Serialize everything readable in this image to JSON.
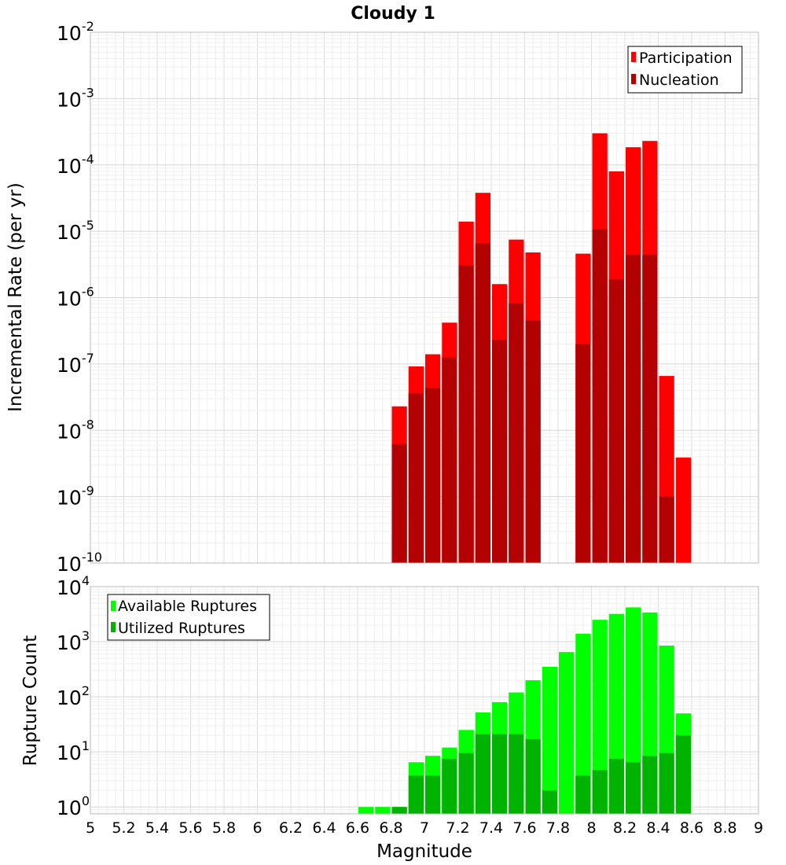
{
  "chart_data": [
    {
      "type": "bar",
      "title": "Cloudy 1",
      "xlabel": "Magnitude",
      "ylabel": "Incremental Rate (per yr)",
      "yscale": "log",
      "ylim": [
        1e-10,
        0.01
      ],
      "xlim": [
        5,
        9
      ],
      "bar_width": 0.1,
      "grid": true,
      "legend_position": "top-right",
      "series": [
        {
          "name": "Participation",
          "color": "#ff0000",
          "x": [
            6.85,
            6.95,
            7.05,
            7.15,
            7.25,
            7.35,
            7.45,
            7.55,
            7.65,
            7.95,
            8.05,
            8.15,
            8.25,
            8.35,
            8.45,
            8.55
          ],
          "values": [
            2.3e-08,
            9.2e-08,
            1.4e-07,
            4.2e-07,
            1.4e-05,
            3.8e-05,
            1.6e-06,
            7.5e-06,
            4.8e-06,
            4.6e-06,
            0.0003,
            8e-05,
            0.000185,
            0.00023,
            6.6e-08,
            3.9e-09
          ]
        },
        {
          "name": "Nucleation",
          "color": "#b30000",
          "x": [
            6.85,
            6.95,
            7.05,
            7.15,
            7.25,
            7.35,
            7.45,
            7.55,
            7.65,
            7.95,
            8.05,
            8.15,
            8.25,
            8.35,
            8.45
          ],
          "values": [
            6.2e-09,
            3.6e-08,
            4.4e-08,
            1.25e-07,
            3.1e-06,
            6.6e-06,
            2.3e-07,
            8.2e-07,
            4.5e-07,
            2e-07,
            1.08e-05,
            1.9e-06,
            4.4e-06,
            4.4e-06,
            1e-09
          ]
        }
      ],
      "y_ticks": [
        {
          "base": "10",
          "exp": "-2"
        },
        {
          "base": "10",
          "exp": "-3"
        },
        {
          "base": "10",
          "exp": "-4"
        },
        {
          "base": "10",
          "exp": "-5"
        },
        {
          "base": "10",
          "exp": "-6"
        },
        {
          "base": "10",
          "exp": "-7"
        },
        {
          "base": "10",
          "exp": "-8"
        },
        {
          "base": "10",
          "exp": "-9"
        },
        {
          "base": "10",
          "exp": "-10"
        }
      ]
    },
    {
      "type": "bar",
      "xlabel": "Magnitude",
      "ylabel": "Rupture Count",
      "yscale": "log",
      "ylim": [
        0.75,
        10000
      ],
      "xlim": [
        5,
        9
      ],
      "bar_width": 0.1,
      "grid": true,
      "legend_position": "top-left",
      "series": [
        {
          "name": "Available Ruptures",
          "color": "#00ff00",
          "x": [
            6.65,
            6.75,
            6.85,
            6.95,
            7.05,
            7.15,
            7.25,
            7.35,
            7.45,
            7.55,
            7.65,
            7.75,
            7.85,
            7.95,
            8.05,
            8.15,
            8.25,
            8.35,
            8.45,
            8.55
          ],
          "values": [
            1,
            1,
            1,
            6.5,
            8.5,
            12,
            25,
            52,
            80,
            120,
            200,
            350,
            650,
            1400,
            2500,
            3200,
            4200,
            3400,
            850,
            50
          ]
        },
        {
          "name": "Utilized Ruptures",
          "color": "#00b300",
          "x": [
            6.85,
            6.95,
            7.05,
            7.15,
            7.25,
            7.35,
            7.45,
            7.55,
            7.65,
            7.75,
            7.95,
            8.05,
            8.15,
            8.25,
            8.35,
            8.45,
            8.55
          ],
          "values": [
            1,
            3.7,
            3.7,
            7.5,
            9.5,
            21,
            21,
            21,
            17,
            2,
            3.7,
            4.7,
            7.5,
            6.5,
            8.5,
            9.5,
            20
          ]
        }
      ],
      "y_ticks": [
        {
          "base": "10",
          "exp": "4"
        },
        {
          "base": "10",
          "exp": "3"
        },
        {
          "base": "10",
          "exp": "2"
        },
        {
          "base": "10",
          "exp": "1"
        },
        {
          "base": "10",
          "exp": "0"
        }
      ],
      "x_tick_labels": [
        "5",
        "5.2",
        "5.4",
        "5.6",
        "5.8",
        "6",
        "6.2",
        "6.4",
        "6.6",
        "6.8",
        "7",
        "7.2",
        "7.4",
        "7.6",
        "7.8",
        "8",
        "8.2",
        "8.4",
        "8.6",
        "8.8",
        "9"
      ]
    }
  ]
}
